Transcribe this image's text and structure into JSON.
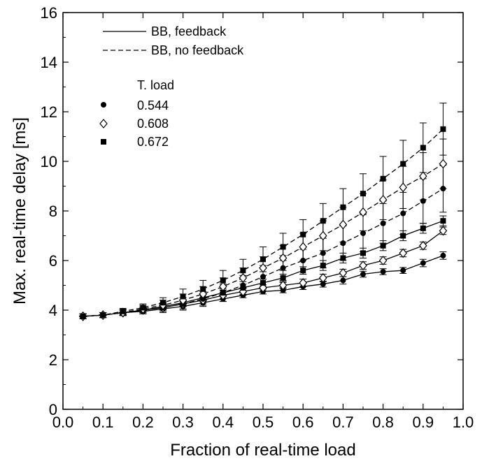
{
  "chart_data": {
    "type": "line",
    "xlabel": "Fraction of real-time load",
    "ylabel": "Max. real-time delay [ms]",
    "xlim": [
      0.0,
      1.0
    ],
    "ylim": [
      0,
      16
    ],
    "x_ticks": [
      "0.0",
      "0.1",
      "0.2",
      "0.3",
      "0.4",
      "0.5",
      "0.6",
      "0.7",
      "0.8",
      "0.9",
      "1.0"
    ],
    "y_ticks": [
      "0",
      "2",
      "4",
      "6",
      "8",
      "10",
      "12",
      "14",
      "16"
    ],
    "grid": false,
    "legend": {
      "placement": "top-left",
      "line_styles": [
        {
          "label": "BB, feedback",
          "dash": "solid"
        },
        {
          "label": "BB, no feedback",
          "dash": "dashed"
        }
      ],
      "marker_title": "T. load",
      "markers": [
        {
          "label": "0.544",
          "marker": "circle"
        },
        {
          "label": "0.608",
          "marker": "diamond"
        },
        {
          "label": "0.672",
          "marker": "square"
        }
      ]
    },
    "series": [
      {
        "line": "BB, feedback",
        "t_load": "0.544",
        "marker": "circle",
        "dash": "solid",
        "x": [
          0.05,
          0.1,
          0.15,
          0.2,
          0.25,
          0.3,
          0.35,
          0.4,
          0.45,
          0.5,
          0.55,
          0.6,
          0.65,
          0.7,
          0.75,
          0.8,
          0.85,
          0.9,
          0.95
        ],
        "y": [
          3.75,
          3.8,
          3.9,
          3.95,
          4.05,
          4.15,
          4.3,
          4.45,
          4.6,
          4.75,
          4.8,
          4.95,
          5.05,
          5.2,
          5.45,
          5.55,
          5.6,
          5.9,
          6.2
        ],
        "err": [
          0.1,
          0.1,
          0.1,
          0.1,
          0.1,
          0.1,
          0.1,
          0.1,
          0.1,
          0.1,
          0.1,
          0.12,
          0.12,
          0.15,
          0.12,
          0.12,
          0.12,
          0.15,
          0.15
        ]
      },
      {
        "line": "BB, feedback",
        "t_load": "0.608",
        "marker": "diamond",
        "dash": "solid",
        "x": [
          0.05,
          0.1,
          0.15,
          0.2,
          0.25,
          0.3,
          0.35,
          0.4,
          0.45,
          0.5,
          0.55,
          0.6,
          0.65,
          0.7,
          0.75,
          0.8,
          0.85,
          0.9,
          0.95
        ],
        "y": [
          3.75,
          3.8,
          3.9,
          4.0,
          4.1,
          4.25,
          4.4,
          4.6,
          4.75,
          4.9,
          5.0,
          5.1,
          5.3,
          5.5,
          5.8,
          6.0,
          6.3,
          6.6,
          7.2
        ],
        "err": [
          0.1,
          0.1,
          0.1,
          0.1,
          0.1,
          0.1,
          0.12,
          0.12,
          0.12,
          0.12,
          0.12,
          0.15,
          0.15,
          0.15,
          0.15,
          0.15,
          0.15,
          0.15,
          0.15
        ]
      },
      {
        "line": "BB, feedback",
        "t_load": "0.672",
        "marker": "square",
        "dash": "solid",
        "x": [
          0.05,
          0.1,
          0.15,
          0.2,
          0.25,
          0.3,
          0.35,
          0.4,
          0.45,
          0.5,
          0.55,
          0.6,
          0.65,
          0.7,
          0.75,
          0.8,
          0.85,
          0.9,
          0.95
        ],
        "y": [
          3.75,
          3.8,
          3.9,
          4.0,
          4.15,
          4.3,
          4.5,
          4.7,
          4.9,
          5.1,
          5.3,
          5.6,
          5.8,
          6.1,
          6.3,
          6.6,
          7.0,
          7.3,
          7.6
        ],
        "err": [
          0.1,
          0.1,
          0.1,
          0.1,
          0.12,
          0.12,
          0.12,
          0.15,
          0.15,
          0.15,
          0.15,
          0.15,
          0.2,
          0.2,
          0.2,
          0.2,
          0.2,
          0.2,
          0.2
        ]
      },
      {
        "line": "BB, no feedback",
        "t_load": "0.544",
        "marker": "circle",
        "dash": "dashed",
        "x": [
          0.05,
          0.1,
          0.15,
          0.2,
          0.25,
          0.3,
          0.35,
          0.4,
          0.45,
          0.5,
          0.55,
          0.6,
          0.65,
          0.7,
          0.75,
          0.8,
          0.85,
          0.9,
          0.95
        ],
        "y": [
          3.75,
          3.8,
          3.9,
          4.0,
          4.1,
          4.25,
          4.45,
          4.7,
          5.0,
          5.35,
          5.7,
          6.0,
          6.3,
          6.7,
          7.1,
          7.5,
          7.9,
          8.4,
          8.9
        ],
        "err": [
          0.1,
          0.1,
          0.12,
          0.15,
          0.2,
          0.25,
          0.3,
          0.35,
          0.4,
          0.45,
          0.5,
          0.55,
          0.6,
          0.7,
          0.75,
          0.8,
          0.85,
          0.9,
          0.95
        ]
      },
      {
        "line": "BB, no feedback",
        "t_load": "0.608",
        "marker": "diamond",
        "dash": "dashed",
        "x": [
          0.05,
          0.1,
          0.15,
          0.2,
          0.25,
          0.3,
          0.35,
          0.4,
          0.45,
          0.5,
          0.55,
          0.6,
          0.65,
          0.7,
          0.75,
          0.8,
          0.85,
          0.9,
          0.95
        ],
        "y": [
          3.75,
          3.8,
          3.9,
          4.05,
          4.2,
          4.4,
          4.65,
          4.95,
          5.3,
          5.7,
          6.1,
          6.55,
          7.0,
          7.45,
          7.95,
          8.45,
          8.95,
          9.4,
          9.9
        ],
        "err": [
          0.1,
          0.1,
          0.12,
          0.15,
          0.2,
          0.25,
          0.3,
          0.35,
          0.4,
          0.45,
          0.5,
          0.55,
          0.6,
          0.7,
          0.75,
          0.8,
          0.85,
          0.95,
          1.0
        ]
      },
      {
        "line": "BB, no feedback",
        "t_load": "0.672",
        "marker": "square",
        "dash": "dashed",
        "x": [
          0.05,
          0.1,
          0.15,
          0.2,
          0.25,
          0.3,
          0.35,
          0.4,
          0.45,
          0.5,
          0.55,
          0.6,
          0.65,
          0.7,
          0.75,
          0.8,
          0.85,
          0.9,
          0.95
        ],
        "y": [
          3.75,
          3.8,
          3.95,
          4.1,
          4.3,
          4.55,
          4.85,
          5.2,
          5.6,
          6.05,
          6.55,
          7.05,
          7.6,
          8.15,
          8.7,
          9.3,
          9.9,
          10.55,
          11.3
        ],
        "err": [
          0.1,
          0.1,
          0.12,
          0.15,
          0.2,
          0.3,
          0.35,
          0.4,
          0.45,
          0.5,
          0.55,
          0.6,
          0.7,
          0.75,
          0.8,
          0.9,
          0.95,
          1.0,
          1.05
        ]
      }
    ]
  }
}
